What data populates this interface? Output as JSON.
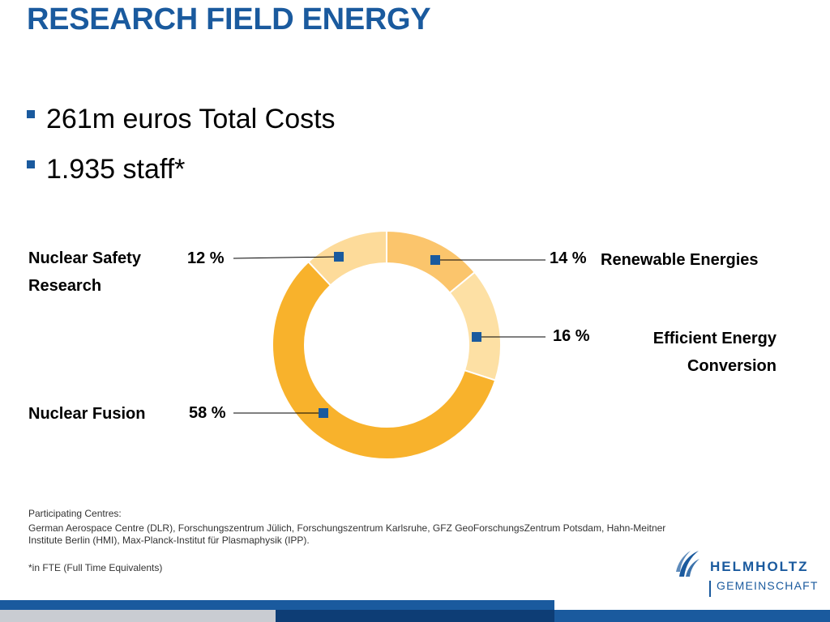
{
  "slide": {
    "title": "RESEARCH FIELD ENERGY",
    "bullets": [
      "261m euros Total Costs",
      "1.935 staff*"
    ]
  },
  "chart_data": {
    "type": "pie",
    "donut": true,
    "categories": [
      "Renewable Energies",
      "Efficient Energy Conversion",
      "Nuclear Fusion",
      "Nuclear Safety Research"
    ],
    "values": [
      14,
      16,
      58,
      12
    ],
    "value_labels": [
      "14 %",
      "16 %",
      "58 %",
      "12 %"
    ],
    "colors": [
      "#fbc56c",
      "#fde0a4",
      "#f8b22c",
      "#fddb9a"
    ],
    "marker_color": "#1a5a9e"
  },
  "labels": {
    "nuclear_safety_1": "Nuclear Safety",
    "nuclear_safety_2": "Research",
    "nuclear_fusion": "Nuclear Fusion",
    "renewable": "Renewable Energies",
    "efficient_1": "Efficient Energy",
    "efficient_2": "Conversion"
  },
  "footer": {
    "heading": "Participating Centres:",
    "body": "German Aerospace Centre (DLR), Forschungszentrum Jülich, Forschungszentrum Karlsruhe, GFZ GeoForschungsZentrum Potsdam, Hahn-Meitner Institute Berlin (HMI), Max-Planck-Institut für Plasmaphysik (IPP).",
    "note": "*in FTE (Full Time Equivalents)"
  },
  "logo": {
    "word1": "HELMHOLTZ",
    "word2": "GEMEINSCHAFT",
    "icon": "helmholtz-logo-icon"
  },
  "colors": {
    "brand_blue": "#1a5a9e"
  }
}
